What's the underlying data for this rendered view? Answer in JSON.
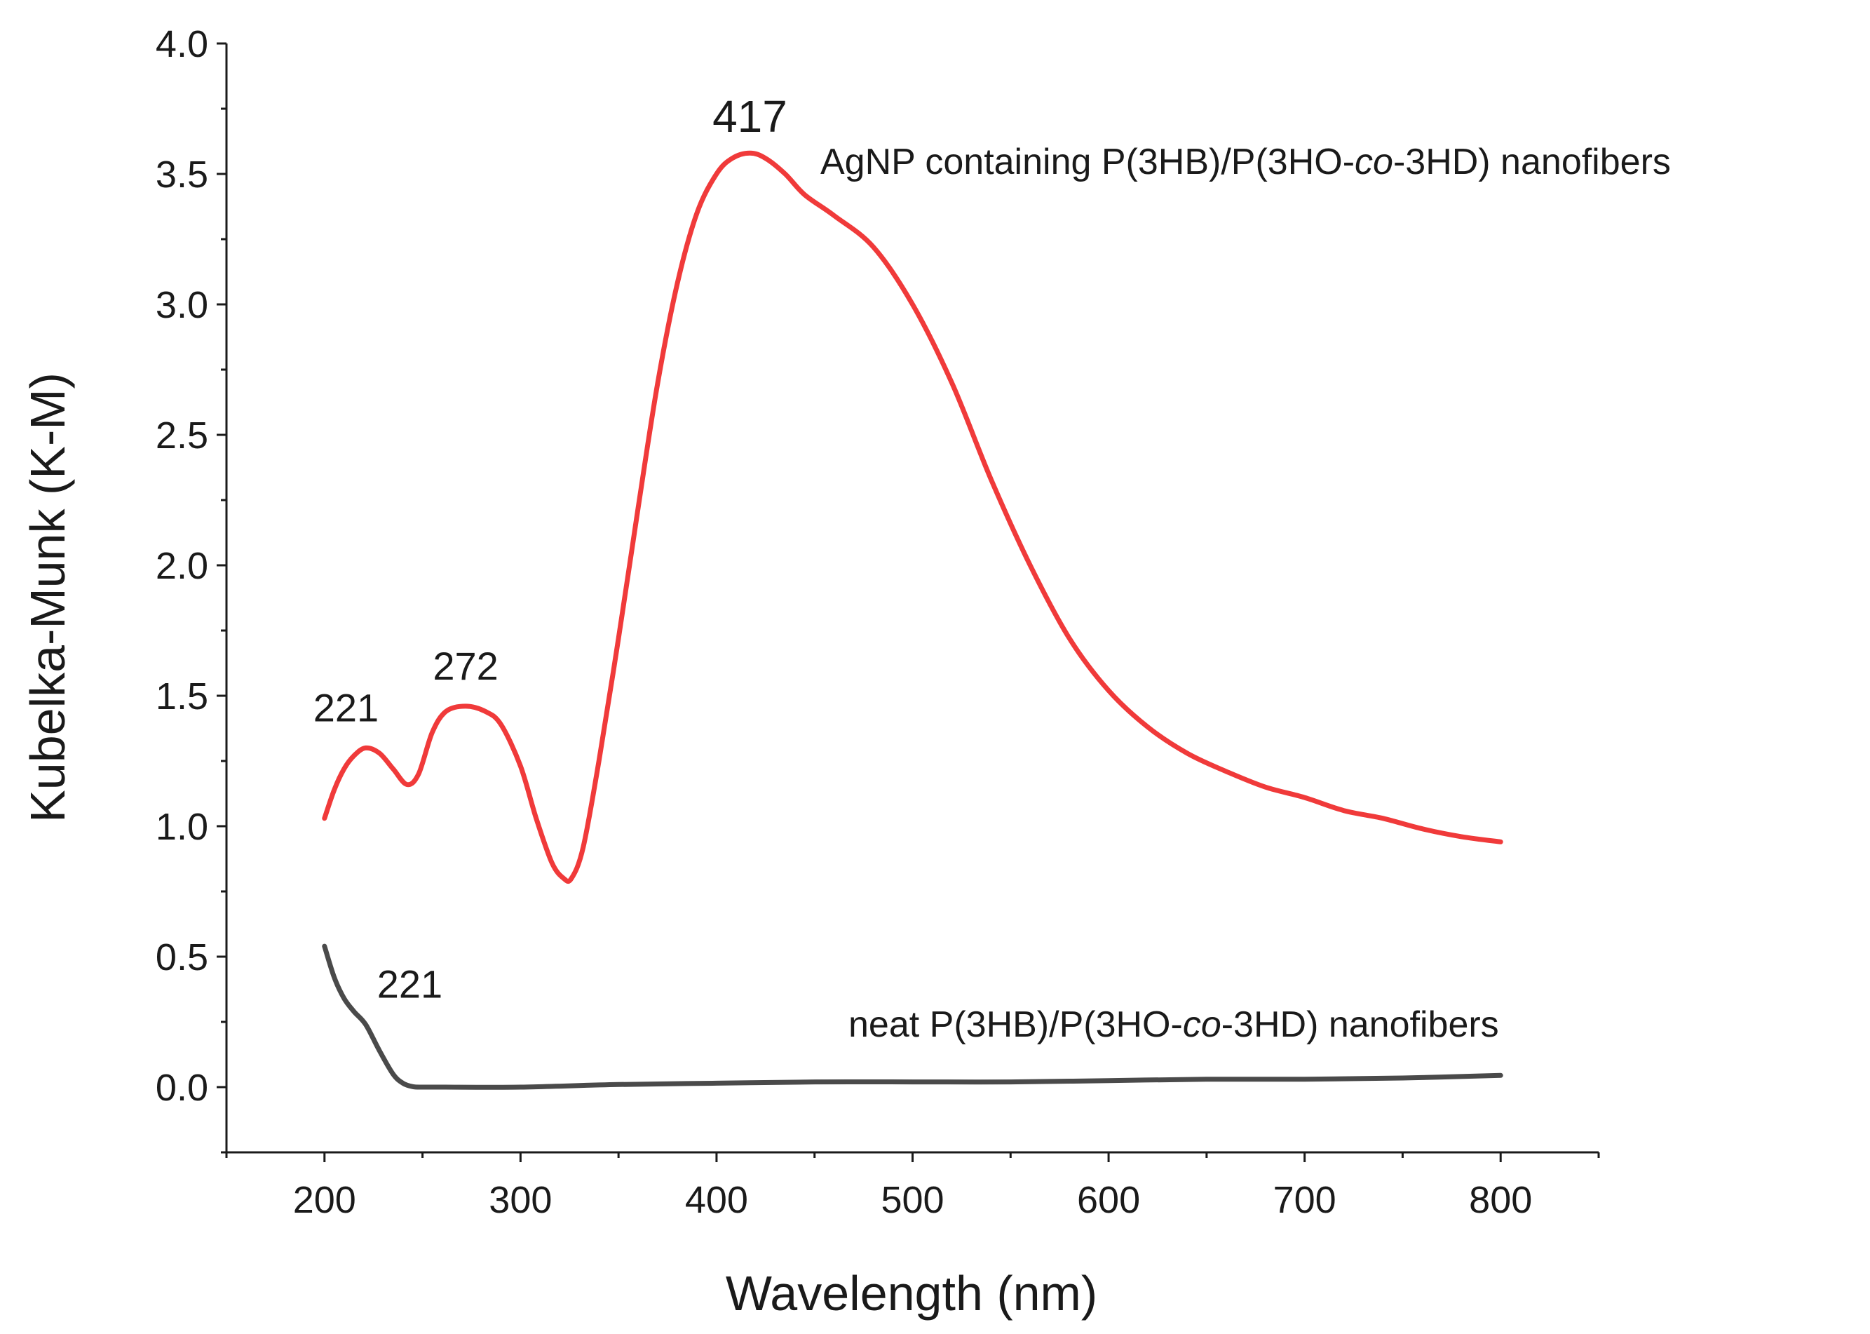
{
  "chart_data": {
    "type": "line",
    "title": "",
    "xlabel": "Wavelength (nm)",
    "ylabel": "Kubelka-Munk (K-M)",
    "xlim": [
      150,
      850
    ],
    "ylim": [
      -0.25,
      4.0
    ],
    "x_ticks": [
      200,
      300,
      400,
      500,
      600,
      700,
      800
    ],
    "x_tick_labels": [
      "200",
      "300",
      "400",
      "500",
      "600",
      "700",
      "800"
    ],
    "y_ticks": [
      0.0,
      0.5,
      1.0,
      1.5,
      2.0,
      2.5,
      3.0,
      3.5,
      4.0
    ],
    "y_tick_labels": [
      "0.0",
      "0.5",
      "1.0",
      "1.5",
      "2.0",
      "2.5",
      "3.0",
      "3.5",
      "4.0"
    ],
    "grid": false,
    "series": [
      {
        "name": "AgNP containing P(3HB)/P(3HO-co-3HD) nanofibers",
        "label_parts": [
          "AgNP containing P(3HB)/P(3HO-",
          "co",
          "-3HD) nanofibers"
        ],
        "color": "#f03a3a",
        "x": [
          200,
          205,
          210,
          215,
          221,
          228,
          235,
          242,
          248,
          255,
          262,
          272,
          282,
          290,
          300,
          308,
          316,
          322,
          326,
          332,
          340,
          350,
          360,
          370,
          380,
          390,
          400,
          408,
          417,
          425,
          435,
          445,
          460,
          480,
          500,
          520,
          540,
          560,
          580,
          600,
          620,
          640,
          660,
          680,
          700,
          720,
          740,
          760,
          780,
          800
        ],
        "y": [
          1.03,
          1.14,
          1.22,
          1.27,
          1.3,
          1.28,
          1.22,
          1.16,
          1.2,
          1.36,
          1.44,
          1.46,
          1.44,
          1.39,
          1.23,
          1.03,
          0.86,
          0.8,
          0.8,
          0.92,
          1.25,
          1.72,
          2.22,
          2.7,
          3.08,
          3.35,
          3.5,
          3.56,
          3.58,
          3.56,
          3.5,
          3.42,
          3.34,
          3.22,
          3.0,
          2.7,
          2.33,
          2.0,
          1.72,
          1.52,
          1.38,
          1.28,
          1.21,
          1.15,
          1.11,
          1.06,
          1.03,
          0.99,
          0.96,
          0.94
        ]
      },
      {
        "name": "neat P(3HB)/P(3HO-co-3HD) nanofibers",
        "label_parts": [
          "neat P(3HB)/P(3HO-",
          "co",
          "-3HD) nanofibers"
        ],
        "color": "#4a4a4a",
        "x": [
          200,
          205,
          210,
          215,
          221,
          228,
          235,
          240,
          245,
          250,
          260,
          300,
          350,
          400,
          450,
          500,
          550,
          600,
          650,
          700,
          750,
          800
        ],
        "y": [
          0.54,
          0.42,
          0.34,
          0.29,
          0.24,
          0.14,
          0.05,
          0.015,
          0.002,
          0.0,
          0.0,
          0.0,
          0.01,
          0.015,
          0.02,
          0.02,
          0.02,
          0.025,
          0.03,
          0.03,
          0.035,
          0.045
        ]
      }
    ],
    "annotations": [
      {
        "text": "417",
        "x": 417,
        "y": 3.58,
        "series": 0
      },
      {
        "text": "272",
        "x": 272,
        "y": 1.46,
        "series": 0
      },
      {
        "text": "221",
        "x": 221,
        "y": 1.3,
        "series": 0
      },
      {
        "text": "221",
        "x": 221,
        "y": 0.24,
        "series": 1
      }
    ]
  }
}
